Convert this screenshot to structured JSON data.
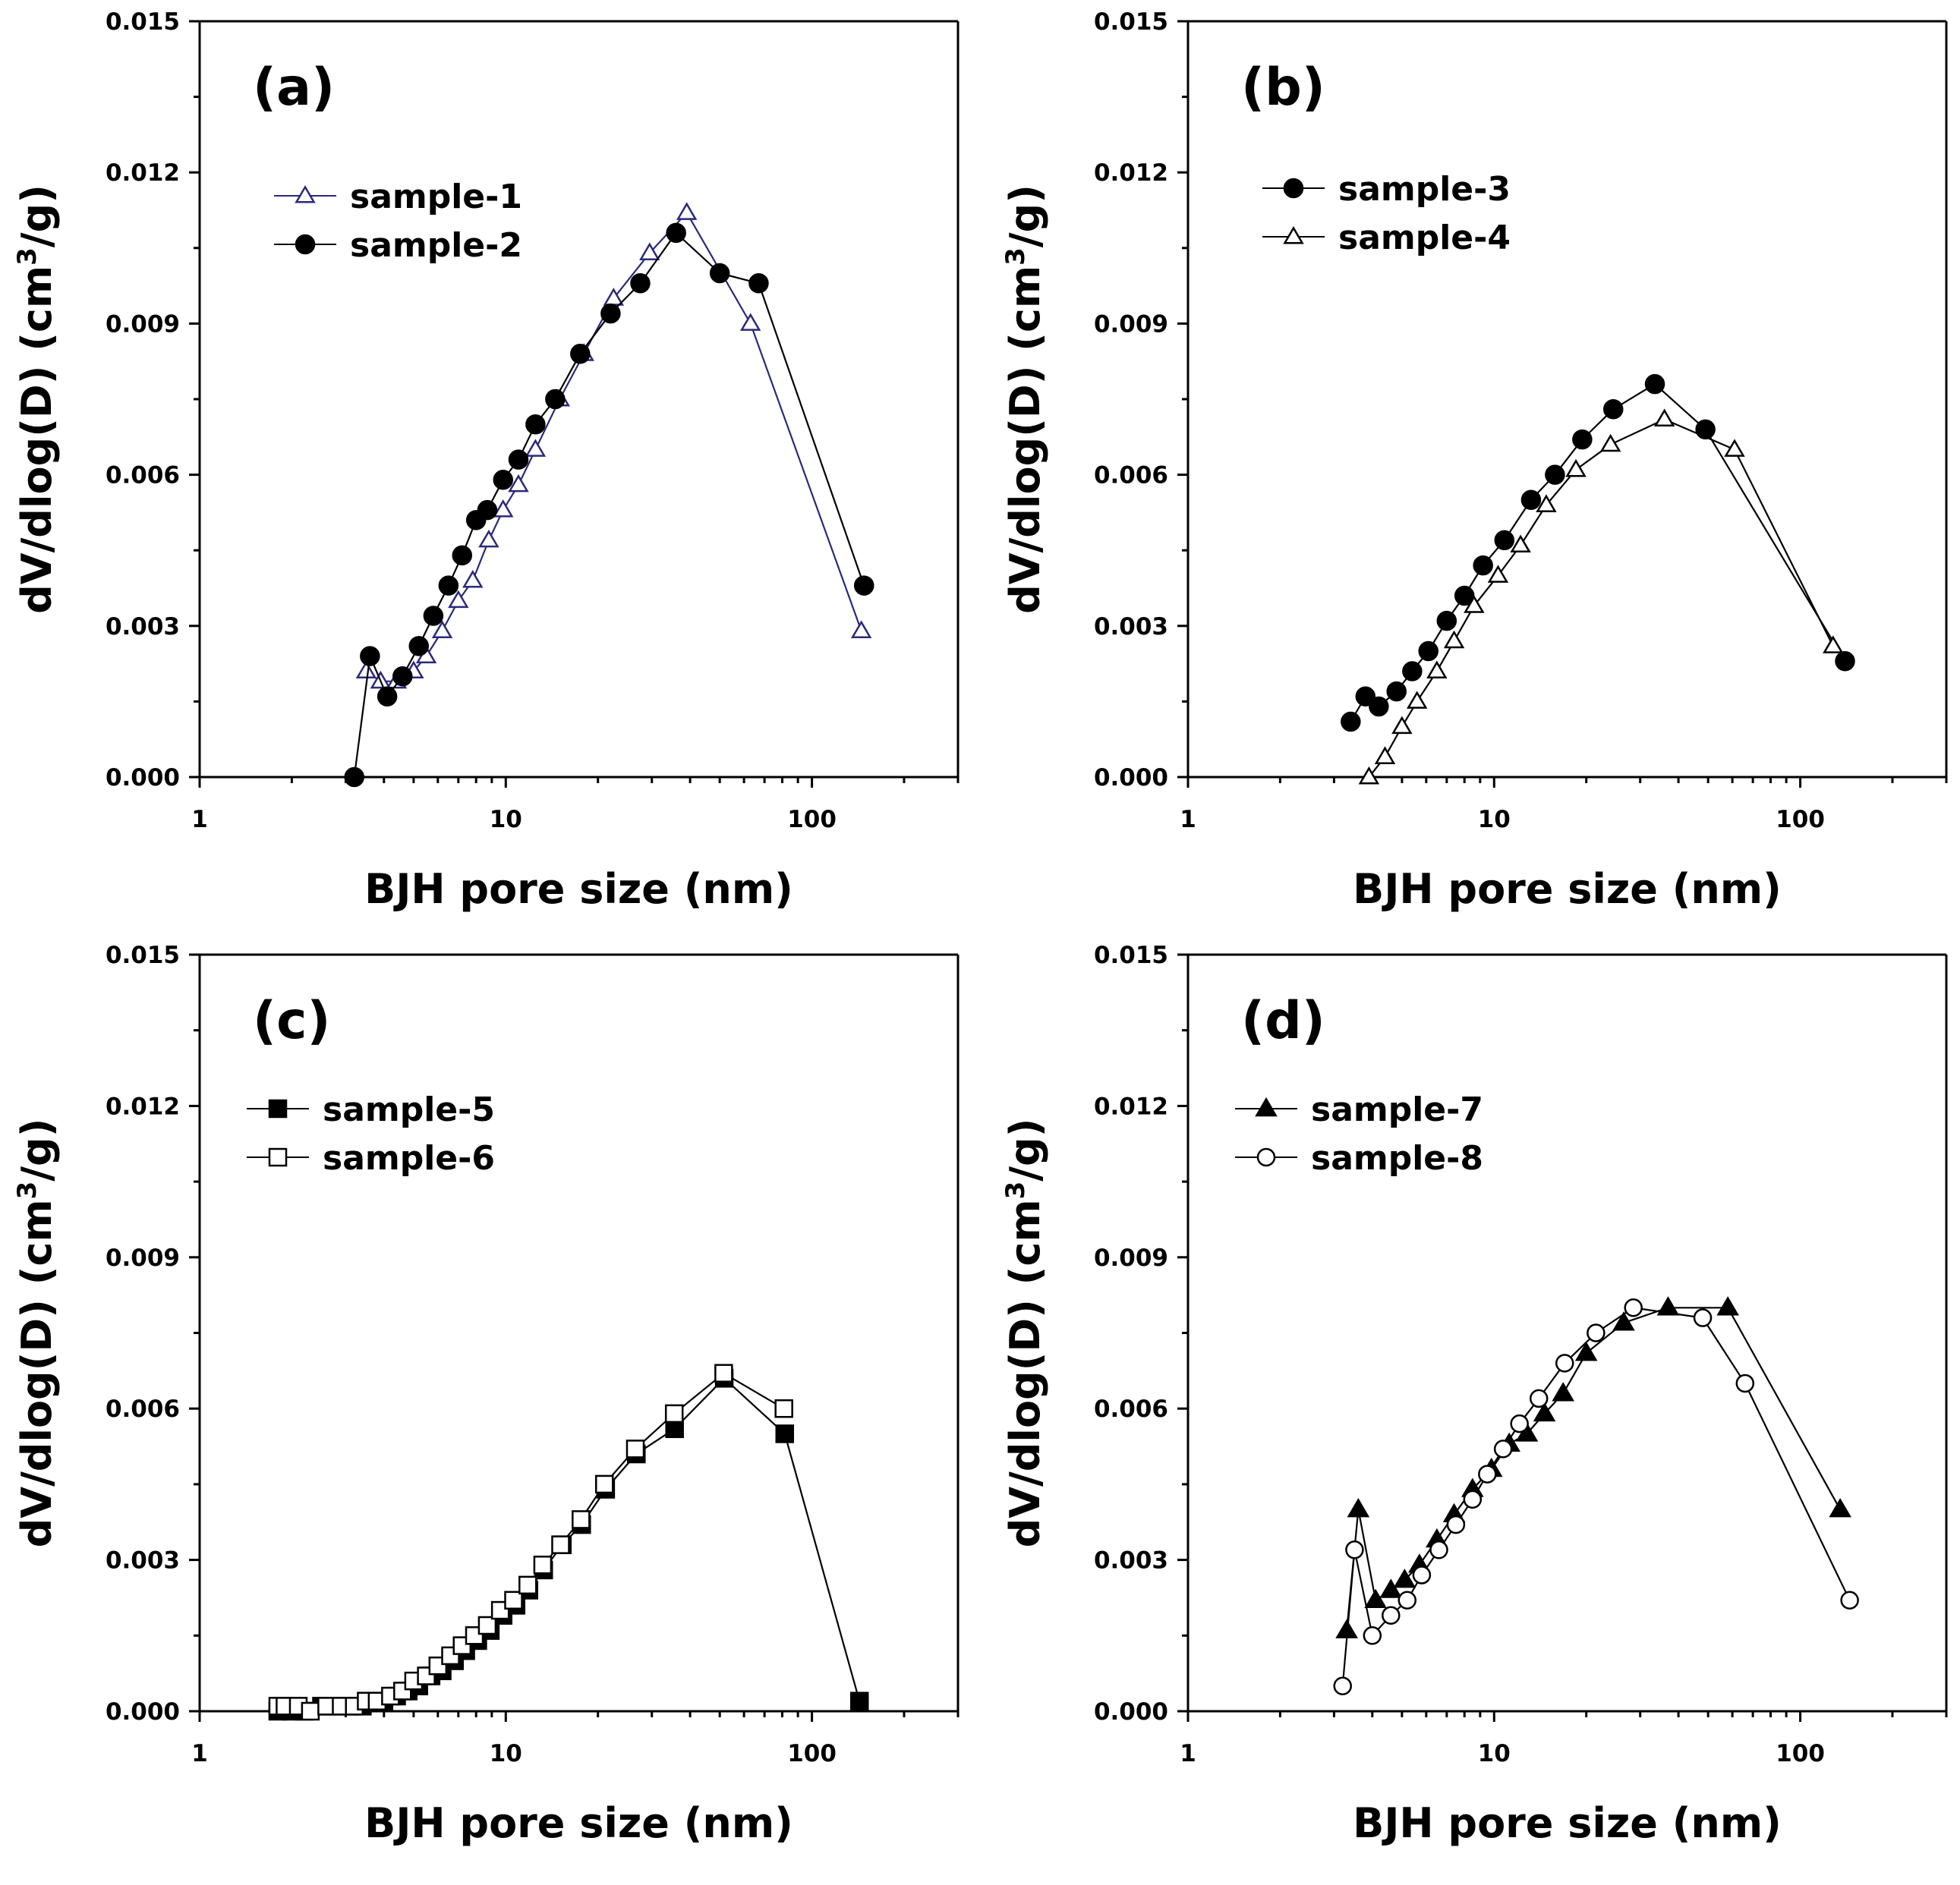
{
  "figure": {
    "xlabel": "BJH pore size (nm)",
    "ylabel_main": "dV/dlog(D) (cm",
    "ylabel_sup": "3",
    "ylabel_tail": "/g)",
    "x_ticks": [
      "1",
      "10",
      "100"
    ],
    "y_ticks": [
      "0.000",
      "0.003",
      "0.006",
      "0.009",
      "0.012",
      "0.015"
    ]
  },
  "chart_data": [
    {
      "type": "line",
      "panel": "(a)",
      "xscale": "log",
      "xlim": [
        1,
        300
      ],
      "ylim": [
        0,
        0.015
      ],
      "xlabel": "BJH pore size (nm)",
      "ylabel": "dV/dlog(D) (cm3/g)",
      "legend_position": "top-left",
      "series": [
        {
          "name": "sample-1",
          "marker": "triangle-open",
          "color": "#2a2a7a",
          "x": [
            3.5,
            3.9,
            4.4,
            5.0,
            5.5,
            6.2,
            7.0,
            7.8,
            8.8,
            9.8,
            11.0,
            12.5,
            15.0,
            18.0,
            22.5,
            29.5,
            39.0,
            63.0,
            145.0
          ],
          "y": [
            0.0021,
            0.0019,
            0.0019,
            0.0021,
            0.0024,
            0.0029,
            0.0035,
            0.0039,
            0.0047,
            0.0053,
            0.0058,
            0.0065,
            0.0075,
            0.0084,
            0.0095,
            0.0104,
            0.0112,
            0.009,
            0.0029
          ]
        },
        {
          "name": "sample-2",
          "marker": "circle-filled",
          "color": "#000000",
          "x": [
            3.2,
            3.6,
            4.1,
            4.6,
            5.2,
            5.8,
            6.5,
            7.2,
            8.0,
            8.7,
            9.8,
            11.0,
            12.5,
            14.5,
            17.5,
            22.0,
            27.5,
            36.0,
            50.0,
            67.0,
            148.0
          ],
          "y": [
            0.0,
            0.0024,
            0.0016,
            0.002,
            0.0026,
            0.0032,
            0.0038,
            0.0044,
            0.0051,
            0.0053,
            0.0059,
            0.0063,
            0.007,
            0.0075,
            0.0084,
            0.0092,
            0.0098,
            0.0108,
            0.01,
            0.0098,
            0.0038
          ]
        }
      ]
    },
    {
      "type": "line",
      "panel": "(b)",
      "xscale": "log",
      "xlim": [
        1,
        300
      ],
      "ylim": [
        0,
        0.015
      ],
      "xlabel": "BJH pore size (nm)",
      "ylabel": "dV/dlog(D) (cm3/g)",
      "legend_position": "top-left",
      "series": [
        {
          "name": "sample-3",
          "marker": "circle-filled",
          "color": "#000000",
          "x": [
            3.4,
            3.8,
            4.2,
            4.8,
            5.4,
            6.1,
            7.0,
            8.0,
            9.2,
            10.8,
            13.2,
            15.8,
            19.4,
            24.5,
            33.5,
            49.0,
            140.0
          ],
          "y": [
            0.0011,
            0.0016,
            0.0014,
            0.0017,
            0.0021,
            0.0025,
            0.0031,
            0.0036,
            0.0042,
            0.0047,
            0.0055,
            0.006,
            0.0067,
            0.0073,
            0.0078,
            0.0069,
            0.0023
          ]
        },
        {
          "name": "sample-4",
          "marker": "triangle-open",
          "color": "#000000",
          "x": [
            3.9,
            4.4,
            5.0,
            5.6,
            6.5,
            7.4,
            8.6,
            10.3,
            12.2,
            14.8,
            18.5,
            24.0,
            36.0,
            61.0,
            128.0
          ],
          "y": [
            0.0,
            0.0004,
            0.001,
            0.0015,
            0.0021,
            0.0027,
            0.0034,
            0.004,
            0.0046,
            0.0054,
            0.0061,
            0.0066,
            0.0071,
            0.0065,
            0.0026
          ]
        }
      ]
    },
    {
      "type": "line",
      "panel": "(c)",
      "xscale": "log",
      "xlim": [
        1,
        300
      ],
      "ylim": [
        0,
        0.015
      ],
      "xlabel": "BJH pore size (nm)",
      "ylabel": "dV/dlog(D) (cm3/g)",
      "legend_position": "top-left",
      "series": [
        {
          "name": "sample-5",
          "marker": "square-filled",
          "color": "#000000",
          "x": [
            1.8,
            2.0,
            2.2,
            2.5,
            2.8,
            3.1,
            3.4,
            3.7,
            4.0,
            4.4,
            4.8,
            5.2,
            5.7,
            6.2,
            6.8,
            7.4,
            8.1,
            8.9,
            9.8,
            10.8,
            11.9,
            13.3,
            15.3,
            17.7,
            21.2,
            26.7,
            35.6,
            51.7,
            81.5,
            143.0
          ],
          "y": [
            0.0,
            0.0,
            0.0,
            0.0001,
            0.0001,
            0.0001,
            0.0001,
            0.0002,
            0.0002,
            0.0003,
            0.0004,
            0.0005,
            0.0007,
            0.0008,
            0.001,
            0.0012,
            0.0014,
            0.0016,
            0.0019,
            0.0021,
            0.0024,
            0.0028,
            0.0033,
            0.0037,
            0.0044,
            0.0051,
            0.0056,
            0.0066,
            0.0055,
            0.0002
          ]
        },
        {
          "name": "sample-6",
          "marker": "square-open",
          "color": "#000000",
          "x": [
            1.8,
            1.9,
            2.1,
            2.3,
            2.6,
            2.9,
            3.2,
            3.5,
            3.8,
            4.2,
            4.6,
            5.0,
            5.5,
            6.0,
            6.6,
            7.2,
            7.9,
            8.7,
            9.6,
            10.6,
            11.8,
            13.2,
            15.1,
            17.6,
            21.0,
            26.5,
            35.5,
            51.5,
            81.0
          ],
          "y": [
            0.0001,
            0.0001,
            0.0001,
            0.0,
            0.0001,
            0.0001,
            0.0001,
            0.0002,
            0.0002,
            0.0003,
            0.0004,
            0.0006,
            0.0007,
            0.0009,
            0.0011,
            0.0013,
            0.0015,
            0.0017,
            0.002,
            0.0022,
            0.0025,
            0.0029,
            0.0033,
            0.0038,
            0.0045,
            0.0052,
            0.0059,
            0.0067,
            0.006
          ]
        }
      ]
    },
    {
      "type": "line",
      "panel": "(d)",
      "xscale": "log",
      "xlim": [
        1,
        300
      ],
      "ylim": [
        0,
        0.015
      ],
      "xlabel": "BJH pore size (nm)",
      "ylabel": "dV/dlog(D) (cm3/g)",
      "legend_position": "top-left",
      "series": [
        {
          "name": "sample-7",
          "marker": "triangle-filled",
          "color": "#000000",
          "x": [
            3.3,
            3.6,
            4.1,
            4.6,
            5.1,
            5.7,
            6.5,
            7.4,
            8.5,
            9.8,
            11.2,
            12.8,
            14.6,
            16.8,
            20.0,
            26.5,
            37.0,
            58.0,
            135.0
          ],
          "y": [
            0.0016,
            0.004,
            0.0022,
            0.0024,
            0.0026,
            0.0029,
            0.0034,
            0.0039,
            0.0044,
            0.0048,
            0.0053,
            0.0055,
            0.0059,
            0.0063,
            0.0071,
            0.0077,
            0.008,
            0.008,
            0.004
          ]
        },
        {
          "name": "sample-8",
          "marker": "circle-open",
          "color": "#000000",
          "x": [
            3.2,
            3.5,
            4.0,
            4.6,
            5.2,
            5.8,
            6.6,
            7.5,
            8.5,
            9.5,
            10.7,
            12.1,
            14.0,
            17.0,
            21.5,
            28.5,
            48.0,
            66.0,
            145.0
          ],
          "y": [
            0.0005,
            0.0032,
            0.0015,
            0.0019,
            0.0022,
            0.0027,
            0.0032,
            0.0037,
            0.0042,
            0.0047,
            0.0052,
            0.0057,
            0.0062,
            0.0069,
            0.0075,
            0.008,
            0.0078,
            0.0065,
            0.0022
          ]
        }
      ]
    }
  ]
}
